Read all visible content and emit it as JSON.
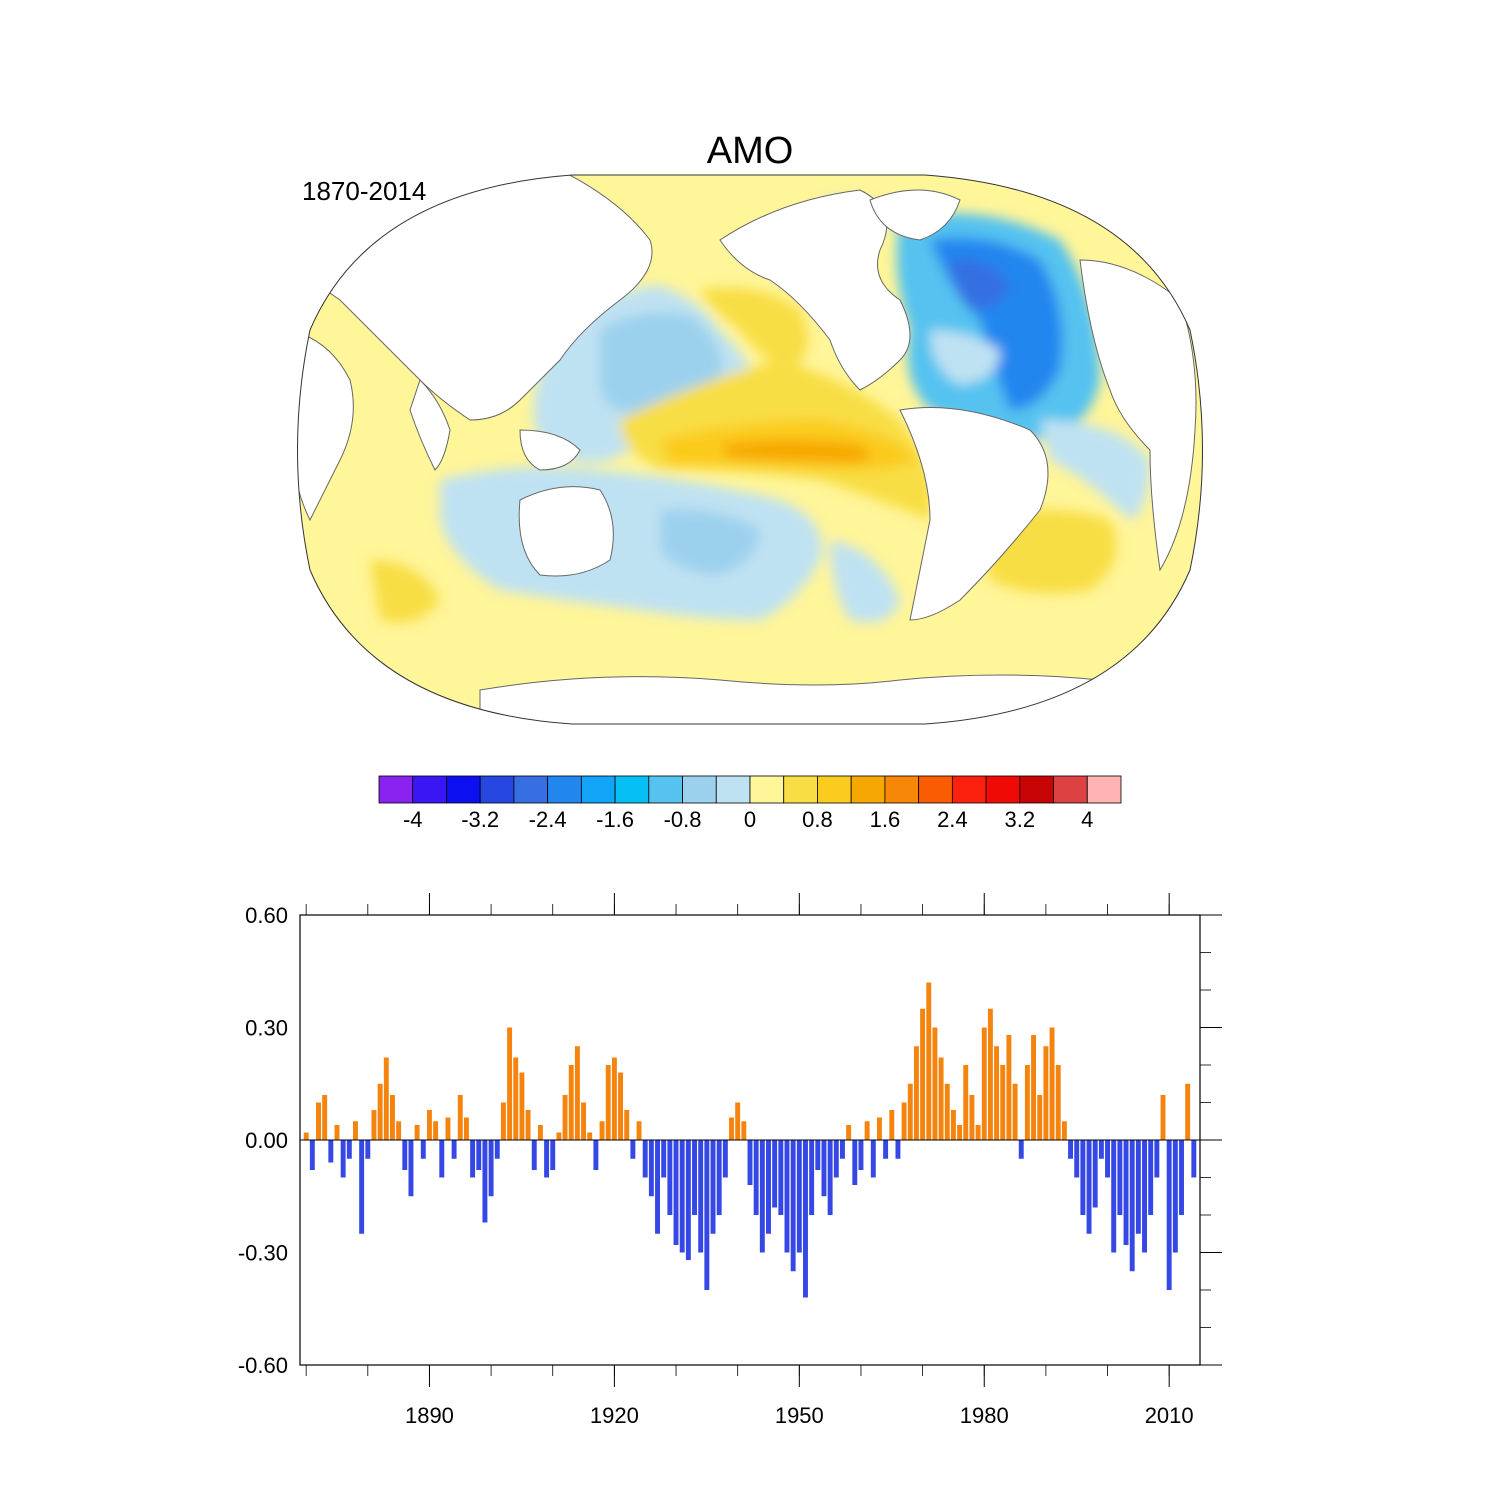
{
  "title": "AMO",
  "period": "1870-2014",
  "colors": {
    "positive": "#f5840f",
    "negative": "#3548e6",
    "land": "#ffffff",
    "coast": "#666666"
  },
  "colorbar": {
    "levels": [
      -4.4,
      -4,
      -3.6,
      -3.2,
      -2.8,
      -2.4,
      -2,
      -1.6,
      -1.2,
      -0.8,
      -0.4,
      0,
      0.4,
      0.8,
      1.2,
      1.6,
      2,
      2.4,
      2.8,
      3.2,
      3.6,
      4,
      4.4
    ],
    "colors": [
      "#8a22f0",
      "#3b16f5",
      "#0c10f0",
      "#2748e0",
      "#356fe2",
      "#2286ef",
      "#12a4f7",
      "#05bff5",
      "#55c2f0",
      "#9cd1ee",
      "#bfe2f2",
      "#fff599",
      "#f8de44",
      "#fbcb1f",
      "#f7a703",
      "#f68707",
      "#fa5c04",
      "#fc200e",
      "#ef0a06",
      "#c80505",
      "#dc4241",
      "#ffb3b3"
    ],
    "tick_labels": [
      "-4",
      "-3.2",
      "-2.4",
      "-1.6",
      "-0.8",
      "0",
      "0.8",
      "1.6",
      "2.4",
      "3.2",
      "4"
    ]
  },
  "chart_data": {
    "type": "bar",
    "title": "AMO",
    "subtitle": "1870-2014",
    "xlabel": "",
    "ylabel": "",
    "xlim": [
      1869,
      2015
    ],
    "ylim": [
      -0.6,
      0.6
    ],
    "x_ticks": [
      1890,
      1920,
      1950,
      1980,
      2010
    ],
    "x_tick_labels": [
      "1890",
      "1920",
      "1950",
      "1980",
      "2010"
    ],
    "y_ticks": [
      -0.6,
      -0.3,
      0.0,
      0.3,
      0.6
    ],
    "y_tick_labels": [
      "-0.60",
      "-0.30",
      "0.00",
      "0.30",
      "0.60"
    ],
    "grid": false,
    "legend": "none",
    "series": [
      {
        "x": [
          1870,
          1871,
          1872,
          1873,
          1874,
          1875,
          1876,
          1877,
          1878,
          1879,
          1880,
          1881,
          1882,
          1883,
          1884,
          1885,
          1886,
          1887,
          1888,
          1889,
          1890,
          1891,
          1892,
          1893,
          1894,
          1895,
          1896,
          1897,
          1898,
          1899,
          1900,
          1901,
          1902,
          1903,
          1904,
          1905,
          1906,
          1907,
          1908,
          1909,
          1910,
          1911,
          1912,
          1913,
          1914,
          1915,
          1916,
          1917,
          1918,
          1919,
          1920,
          1921,
          1922,
          1923,
          1924,
          1925,
          1926,
          1927,
          1928,
          1929,
          1930,
          1931,
          1932,
          1933,
          1934,
          1935,
          1936,
          1937,
          1938,
          1939,
          1940,
          1941,
          1942,
          1943,
          1944,
          1945,
          1946,
          1947,
          1948,
          1949,
          1950,
          1951,
          1952,
          1953,
          1954,
          1955,
          1956,
          1957,
          1958,
          1959,
          1960,
          1961,
          1962,
          1963,
          1964,
          1965,
          1966,
          1967,
          1968,
          1969,
          1970,
          1971,
          1972,
          1973,
          1974,
          1975,
          1976,
          1977,
          1978,
          1979,
          1980,
          1981,
          1982,
          1983,
          1984,
          1985,
          1986,
          1987,
          1988,
          1989,
          1990,
          1991,
          1992,
          1993,
          1994,
          1995,
          1996,
          1997,
          1998,
          1999,
          2000,
          2001,
          2002,
          2003,
          2004,
          2005,
          2006,
          2007,
          2008,
          2009,
          2010,
          2011,
          2012,
          2013,
          2014
        ],
        "values": [
          0.02,
          -0.08,
          0.1,
          0.12,
          -0.06,
          0.04,
          -0.1,
          -0.05,
          0.05,
          -0.25,
          -0.05,
          0.08,
          0.15,
          0.22,
          0.12,
          0.05,
          -0.08,
          -0.15,
          0.04,
          -0.05,
          0.08,
          0.05,
          -0.1,
          0.06,
          -0.05,
          0.12,
          0.06,
          -0.1,
          -0.08,
          -0.22,
          -0.15,
          -0.05,
          0.1,
          0.3,
          0.22,
          0.18,
          0.08,
          -0.08,
          0.04,
          -0.1,
          -0.08,
          0.02,
          0.12,
          0.2,
          0.25,
          0.1,
          0.02,
          -0.08,
          0.05,
          0.2,
          0.22,
          0.18,
          0.08,
          -0.05,
          0.05,
          -0.1,
          -0.15,
          -0.25,
          -0.1,
          -0.2,
          -0.28,
          -0.3,
          -0.32,
          -0.2,
          -0.3,
          -0.4,
          -0.25,
          -0.2,
          -0.1,
          0.06,
          0.1,
          0.05,
          -0.12,
          -0.2,
          -0.3,
          -0.25,
          -0.18,
          -0.2,
          -0.3,
          -0.35,
          -0.3,
          -0.42,
          -0.2,
          -0.08,
          -0.15,
          -0.2,
          -0.1,
          -0.05,
          0.04,
          -0.12,
          -0.08,
          0.05,
          -0.1,
          0.06,
          -0.05,
          0.08,
          -0.05,
          0.1,
          0.15,
          0.25,
          0.35,
          0.42,
          0.3,
          0.22,
          0.15,
          0.08,
          0.04,
          0.2,
          0.12,
          0.04,
          0.3,
          0.35,
          0.25,
          0.2,
          0.28,
          0.15,
          -0.05,
          0.2,
          0.28,
          0.12,
          0.25,
          0.3,
          0.2,
          0.05,
          -0.05,
          -0.1,
          -0.2,
          -0.25,
          -0.18,
          -0.05,
          -0.1,
          -0.3,
          -0.2,
          -0.28,
          -0.35,
          -0.25,
          -0.3,
          -0.2,
          -0.1,
          0.12,
          -0.4,
          -0.3,
          -0.2,
          0.15,
          -0.1
        ]
      }
    ]
  }
}
